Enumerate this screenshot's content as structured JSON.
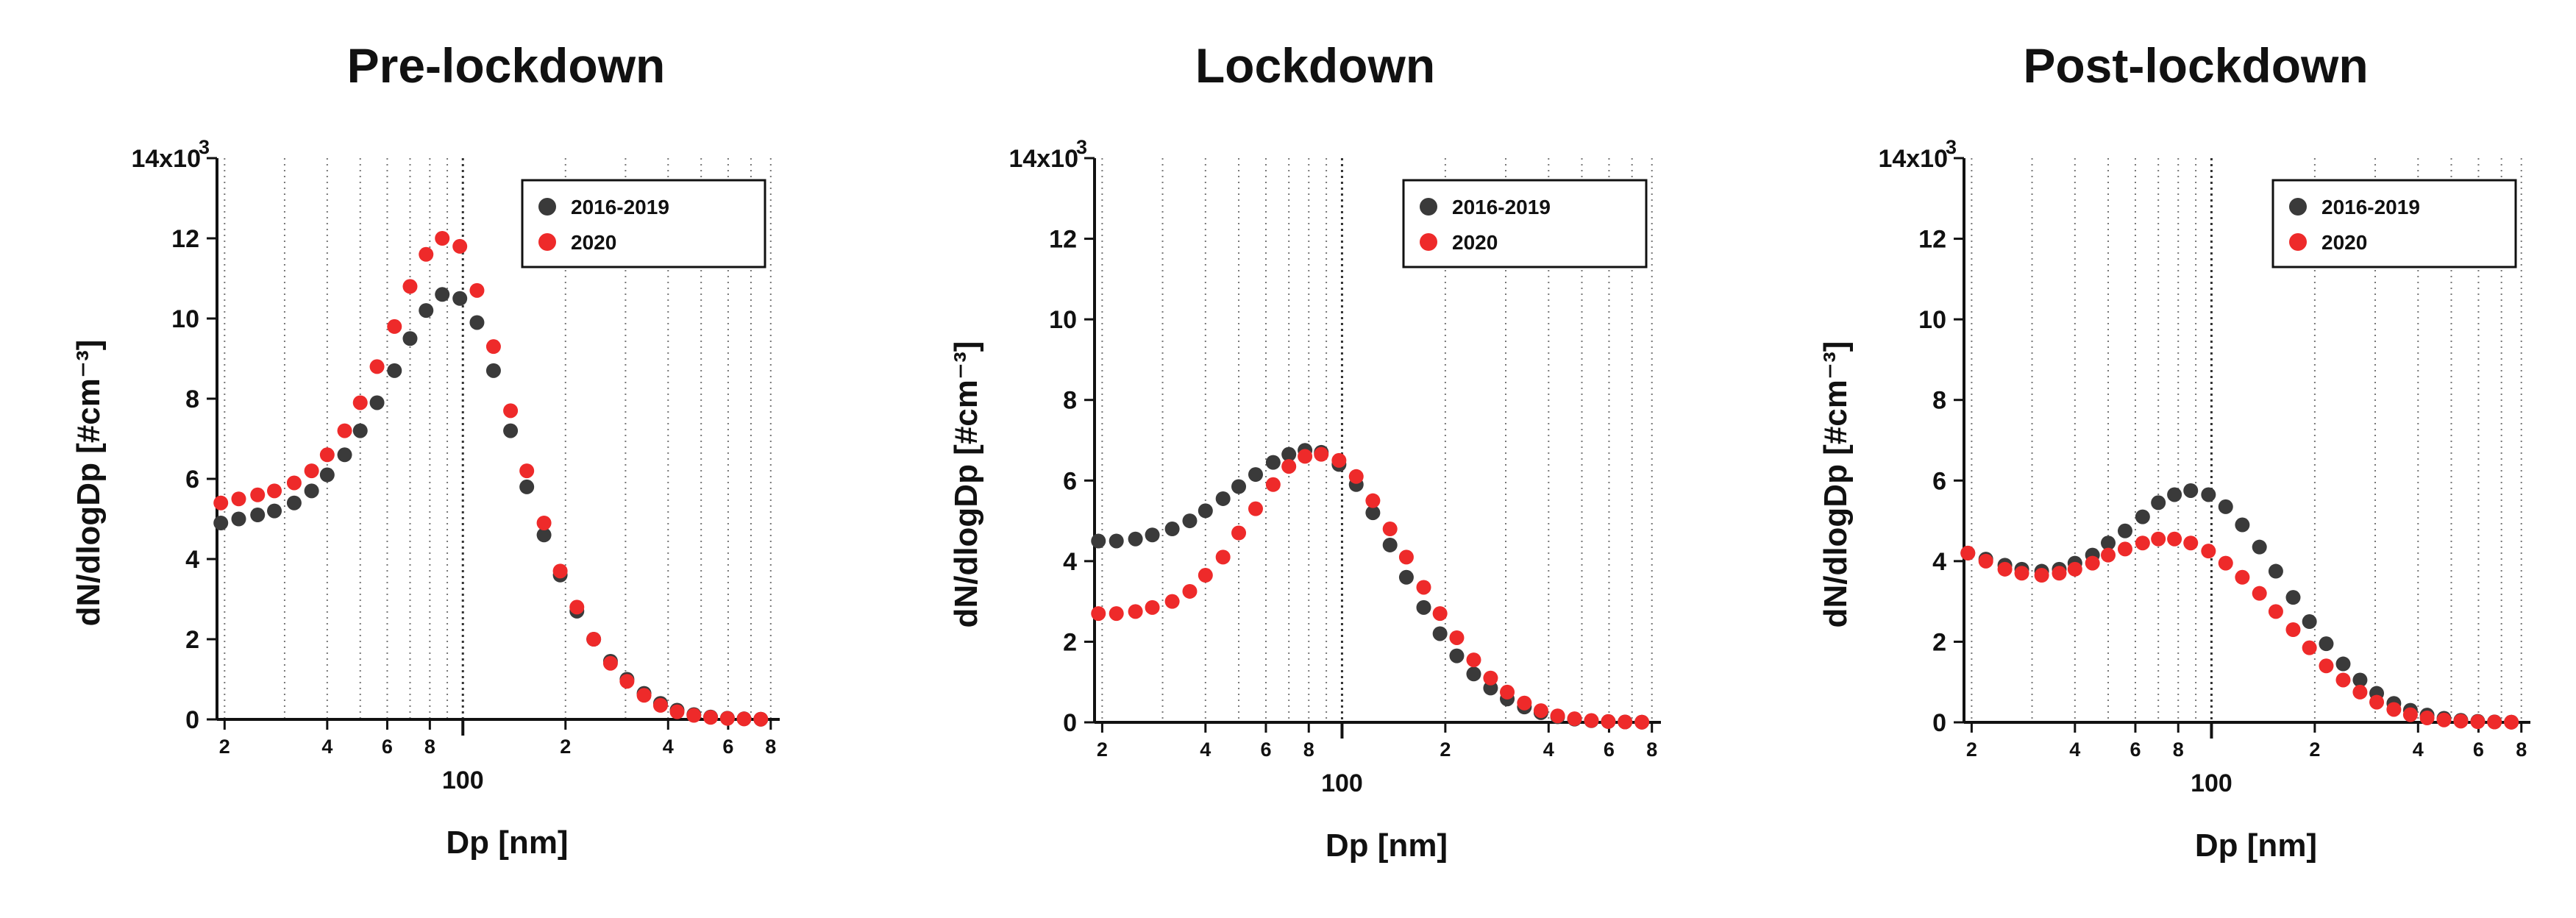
{
  "chart_data": [
    {
      "type": "scatter",
      "title": "Pre-lockdown",
      "xlabel": "Dp [nm]",
      "ylabel": "dN/dlogDp [#cm⁻³]",
      "x_scale": "log",
      "xlim": [
        19,
        850
      ],
      "ylim": [
        0,
        14000
      ],
      "y_ticks": [
        0,
        2,
        4,
        6,
        8,
        10,
        12,
        14
      ],
      "y_tick_labels": [
        "0",
        "2",
        "4",
        "6",
        "8",
        "10",
        "12",
        "14x10³"
      ],
      "x_major_label": "100",
      "x_minor_labels": [
        "2",
        "4",
        "6",
        "8",
        "2",
        "4",
        "6",
        "8"
      ],
      "legend_position": "top-right",
      "series": [
        {
          "name": "2016-2019",
          "color": "#3a3a3a",
          "x": [
            19.5,
            22,
            25,
            28,
            32,
            36,
            40,
            45,
            50,
            56,
            63,
            70,
            78,
            87,
            98,
            110,
            123,
            138,
            154,
            173,
            193,
            216,
            242,
            271,
            303,
            340,
            380,
            425,
            476,
            533,
            597,
            668,
            748
          ],
          "y": [
            4900,
            5000,
            5100,
            5200,
            5400,
            5700,
            6100,
            6600,
            7200,
            7900,
            8700,
            9500,
            10200,
            10600,
            10500,
            9900,
            8700,
            7200,
            5800,
            4600,
            3600,
            2700,
            2000,
            1450,
            1000,
            650,
            400,
            230,
            120,
            60,
            30,
            15,
            5
          ]
        },
        {
          "name": "2020",
          "color": "#ee2a2a",
          "x": [
            19.5,
            22,
            25,
            28,
            32,
            36,
            40,
            45,
            50,
            56,
            63,
            70,
            78,
            87,
            98,
            110,
            123,
            138,
            154,
            173,
            193,
            216,
            242,
            271,
            303,
            340,
            380,
            425,
            476,
            533,
            597,
            668,
            748
          ],
          "y": [
            5400,
            5500,
            5600,
            5700,
            5900,
            6200,
            6600,
            7200,
            7900,
            8800,
            9800,
            10800,
            11600,
            12000,
            11800,
            10700,
            9300,
            7700,
            6200,
            4900,
            3700,
            2800,
            2000,
            1400,
            950,
            600,
            350,
            190,
            100,
            50,
            25,
            12,
            5
          ]
        }
      ]
    },
    {
      "type": "scatter",
      "title": "Lockdown",
      "xlabel": "Dp [nm]",
      "ylabel": "dN/dlogDp [#cm⁻³]",
      "x_scale": "log",
      "xlim": [
        19,
        850
      ],
      "ylim": [
        0,
        14000
      ],
      "y_ticks": [
        0,
        2,
        4,
        6,
        8,
        10,
        12,
        14
      ],
      "y_tick_labels": [
        "0",
        "2",
        "4",
        "6",
        "8",
        "10",
        "12",
        "14x10³"
      ],
      "x_major_label": "100",
      "x_minor_labels": [
        "2",
        "4",
        "6",
        "8",
        "2",
        "4",
        "6",
        "8"
      ],
      "legend_position": "top-right",
      "series": [
        {
          "name": "2016-2019",
          "color": "#3a3a3a",
          "x": [
            19.5,
            22,
            25,
            28,
            32,
            36,
            40,
            45,
            50,
            56,
            63,
            70,
            78,
            87,
            98,
            110,
            123,
            138,
            154,
            173,
            193,
            216,
            242,
            271,
            303,
            340,
            380,
            425,
            476,
            533,
            597,
            668,
            748
          ],
          "y": [
            4500,
            4500,
            4550,
            4650,
            4800,
            5000,
            5250,
            5550,
            5850,
            6150,
            6450,
            6650,
            6750,
            6700,
            6400,
            5900,
            5200,
            4400,
            3600,
            2850,
            2200,
            1650,
            1200,
            850,
            580,
            380,
            240,
            140,
            80,
            40,
            20,
            10,
            5
          ]
        },
        {
          "name": "2020",
          "color": "#ee2a2a",
          "x": [
            19.5,
            22,
            25,
            28,
            32,
            36,
            40,
            45,
            50,
            56,
            63,
            70,
            78,
            87,
            98,
            110,
            123,
            138,
            154,
            173,
            193,
            216,
            242,
            271,
            303,
            340,
            380,
            425,
            476,
            533,
            597,
            668,
            748
          ],
          "y": [
            2700,
            2700,
            2750,
            2850,
            3000,
            3250,
            3650,
            4100,
            4700,
            5300,
            5900,
            6350,
            6600,
            6650,
            6500,
            6100,
            5500,
            4800,
            4100,
            3350,
            2700,
            2100,
            1550,
            1100,
            750,
            480,
            290,
            160,
            90,
            45,
            20,
            10,
            5
          ]
        }
      ]
    },
    {
      "type": "scatter",
      "title": "Post-lockdown",
      "xlabel": "Dp [nm]",
      "ylabel": "dN/dlogDp [#cm⁻³]",
      "x_scale": "log",
      "xlim": [
        19,
        850
      ],
      "ylim": [
        0,
        14000
      ],
      "y_ticks": [
        0,
        2,
        4,
        6,
        8,
        10,
        12,
        14
      ],
      "y_tick_labels": [
        "0",
        "2",
        "4",
        "6",
        "8",
        "10",
        "12",
        "14x10³"
      ],
      "x_major_label": "100",
      "x_minor_labels": [
        "2",
        "4",
        "6",
        "8",
        "2",
        "4",
        "6",
        "8"
      ],
      "legend_position": "top-right",
      "series": [
        {
          "name": "2016-2019",
          "color": "#3a3a3a",
          "x": [
            19.5,
            22,
            25,
            28,
            32,
            36,
            40,
            45,
            50,
            56,
            63,
            70,
            78,
            87,
            98,
            110,
            123,
            138,
            154,
            173,
            193,
            216,
            242,
            271,
            303,
            340,
            380,
            425,
            476,
            533,
            597,
            668,
            748
          ],
          "y": [
            4200,
            4050,
            3900,
            3800,
            3750,
            3800,
            3950,
            4150,
            4450,
            4750,
            5100,
            5450,
            5650,
            5750,
            5650,
            5350,
            4900,
            4350,
            3750,
            3100,
            2500,
            1950,
            1450,
            1050,
            720,
            470,
            300,
            180,
            100,
            50,
            25,
            12,
            5
          ]
        },
        {
          "name": "2020",
          "color": "#ee2a2a",
          "x": [
            19.5,
            22,
            25,
            28,
            32,
            36,
            40,
            45,
            50,
            56,
            63,
            70,
            78,
            87,
            98,
            110,
            123,
            138,
            154,
            173,
            193,
            216,
            242,
            271,
            303,
            340,
            380,
            425,
            476,
            533,
            597,
            668,
            748
          ],
          "y": [
            4200,
            4000,
            3800,
            3700,
            3650,
            3700,
            3800,
            3950,
            4150,
            4300,
            4450,
            4550,
            4550,
            4450,
            4250,
            3950,
            3600,
            3200,
            2750,
            2300,
            1850,
            1400,
            1050,
            750,
            500,
            320,
            190,
            110,
            60,
            30,
            15,
            8,
            4
          ]
        }
      ]
    }
  ]
}
